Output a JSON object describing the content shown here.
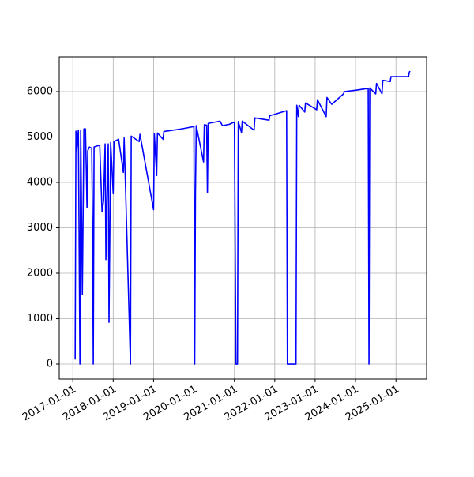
{
  "chart_data": {
    "type": "line",
    "x": [
      "2017-01-22",
      "2017-01-29",
      "2017-02-05",
      "2017-02-20",
      "2017-03-06",
      "2017-03-13",
      "2017-03-28",
      "2017-04-11",
      "2017-04-25",
      "2017-05-02",
      "2017-05-09",
      "2017-05-16",
      "2017-05-31",
      "2017-06-21",
      "2017-06-28",
      "2017-07-05",
      "2017-07-12",
      "2017-08-03",
      "2017-09-01",
      "2017-09-22",
      "2017-10-06",
      "2017-10-20",
      "2017-10-27",
      "2017-11-03",
      "2017-11-17",
      "2017-11-24",
      "2017-12-09",
      "2018-01-01",
      "2018-01-08",
      "2018-02-19",
      "2018-04-03",
      "2018-04-10",
      "2018-06-06",
      "2018-06-13",
      "2018-08-24",
      "2018-08-31",
      "2019-01-01",
      "2019-01-08",
      "2019-01-29",
      "2019-02-05",
      "2019-03-28",
      "2019-04-04",
      "2019-09-15",
      "2020-01-01",
      "2020-01-08",
      "2020-01-15",
      "2020-01-22",
      "2020-03-28",
      "2020-04-04",
      "2020-04-25",
      "2020-05-02",
      "2020-05-09",
      "2020-08-24",
      "2020-09-15",
      "2020-11-17",
      "2021-01-01",
      "2021-01-15",
      "2021-01-29",
      "2021-02-05",
      "2021-03-06",
      "2021-03-13",
      "2021-06-28",
      "2021-07-05",
      "2021-11-10",
      "2021-11-17",
      "2022-01-01",
      "2022-04-18",
      "2022-04-25",
      "2022-07-12",
      "2022-07-19",
      "2022-08-02",
      "2022-08-09",
      "2022-09-29",
      "2022-10-06",
      "2023-01-15",
      "2023-01-22",
      "2023-04-11",
      "2023-04-18",
      "2023-05-31",
      "2023-09-15",
      "2023-09-22",
      "2024-01-01",
      "2024-04-25",
      "2024-05-02",
      "2024-05-09",
      "2024-07-02",
      "2024-07-09",
      "2024-08-28",
      "2024-09-04",
      "2024-11-10",
      "2024-11-17",
      "2025-04-25",
      "2025-05-02",
      "2025-05-09"
    ],
    "series": [
      {
        "color": "blue",
        "values": [
          100,
          5130,
          4700,
          5150,
          0,
          5150,
          1530,
          5180,
          5180,
          4350,
          3450,
          4700,
          4780,
          4750,
          3150,
          0,
          4780,
          4800,
          4820,
          3350,
          3600,
          4850,
          2300,
          3400,
          4850,
          920,
          4880,
          3750,
          4900,
          4950,
          4220,
          4980,
          0,
          5020,
          4900,
          5060,
          3400,
          5080,
          4150,
          5090,
          4950,
          5120,
          5180,
          5230,
          0,
          3780,
          5250,
          4450,
          5270,
          5260,
          3770,
          5300,
          5350,
          5250,
          5280,
          5330,
          0,
          0,
          5340,
          5100,
          5350,
          5150,
          5420,
          5370,
          5470,
          5500,
          5580,
          0,
          0,
          5700,
          5450,
          5700,
          5550,
          5750,
          5600,
          5820,
          5450,
          5870,
          5720,
          5950,
          6000,
          6030,
          6070,
          0,
          6080,
          5950,
          6180,
          5950,
          6250,
          6220,
          6330,
          6330,
          6430,
          6450
        ]
      }
    ],
    "xlim": [
      "2016-08-31",
      "2025-10-05"
    ],
    "xticks": [
      "2017-01-01",
      "2018-01-01",
      "2019-01-01",
      "2020-01-01",
      "2021-01-01",
      "2022-01-01",
      "2023-01-01",
      "2024-01-01",
      "2025-01-01"
    ],
    "ylim": [
      -330,
      6765
    ],
    "yticks": [
      0,
      1000,
      2000,
      3000,
      4000,
      5000,
      6000
    ],
    "grid": true
  }
}
